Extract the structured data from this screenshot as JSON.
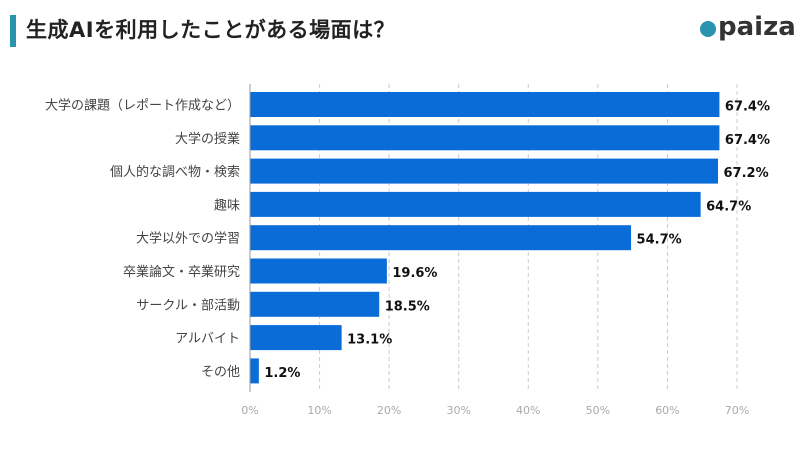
{
  "header": {
    "title": "生成AIを利用したことがある場面は？",
    "logo": "paiza"
  },
  "chart_data": {
    "type": "bar",
    "orientation": "horizontal",
    "title": "生成AIを利用したことがある場面は？",
    "categories": [
      "大学の課題（レポート作成など）",
      "大学の授業",
      "個人的な調べ物・検索",
      "趣味",
      "大学以外での学習",
      "卒業論文・卒業研究",
      "サークル・部活動",
      "アルバイト",
      "その他"
    ],
    "values": [
      67.4,
      67.4,
      67.2,
      64.7,
      54.7,
      19.6,
      18.5,
      13.1,
      1.2
    ],
    "value_labels": [
      "67.4%",
      "67.4%",
      "67.2%",
      "64.7%",
      "54.7%",
      "19.6%",
      "18.5%",
      "13.1%",
      "1.2%"
    ],
    "xlim": [
      0,
      70
    ],
    "ticks": [
      "0%",
      "10%",
      "20%",
      "30%",
      "40%",
      "50%",
      "60%",
      "70%"
    ],
    "grid": true,
    "colors": {
      "bar": "#0a6cd6",
      "grid": "#cccccc",
      "tick": "#aaaaaa"
    }
  }
}
